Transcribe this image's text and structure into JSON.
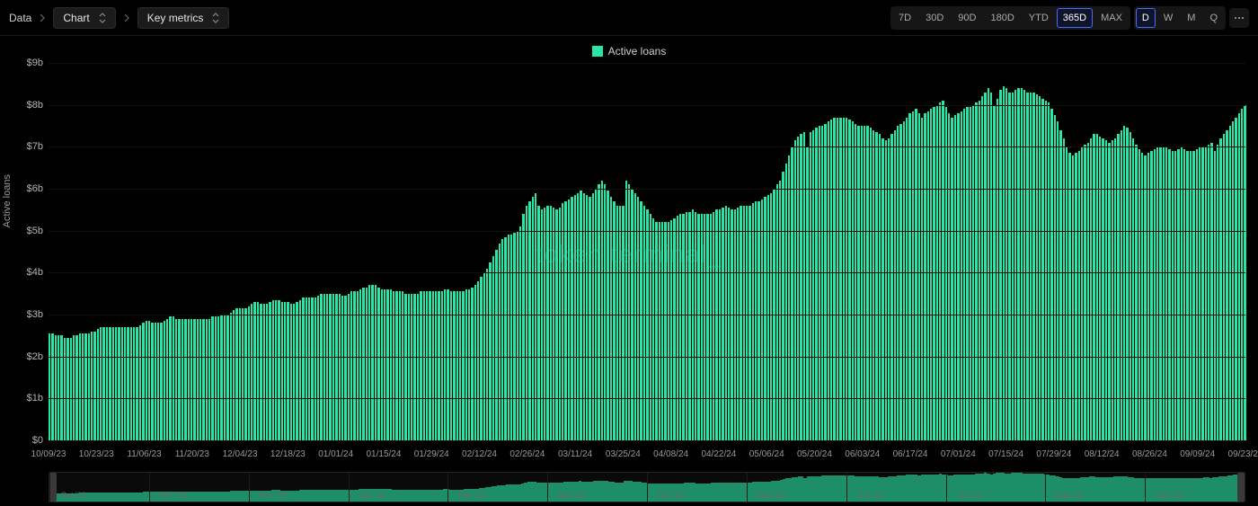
{
  "toolbar": {
    "root_label": "Data",
    "view_select": {
      "label": "Chart"
    },
    "metric_select": {
      "label": "Key metrics"
    },
    "ranges": [
      {
        "label": "7D",
        "selected": false
      },
      {
        "label": "30D",
        "selected": false
      },
      {
        "label": "90D",
        "selected": false
      },
      {
        "label": "180D",
        "selected": false
      },
      {
        "label": "YTD",
        "selected": false
      },
      {
        "label": "365D",
        "selected": true
      },
      {
        "label": "MAX",
        "selected": false
      }
    ],
    "intervals": [
      {
        "label": "D",
        "selected": true
      },
      {
        "label": "W",
        "selected": false
      },
      {
        "label": "M",
        "selected": false
      },
      {
        "label": "Q",
        "selected": false
      }
    ]
  },
  "chart": {
    "type": "bar",
    "legend_label": "Active loans",
    "y_axis_title": "Active loans",
    "watermark": "token terminal_",
    "bar_color": "#29e6a7",
    "background_color": "#000000",
    "grid_color": "#111111",
    "text_color": "#b5b5b5",
    "selected_range_border": "#4a6cff",
    "legend_fontsize": 12,
    "tick_fontsize": 11,
    "ylim": [
      0,
      9
    ],
    "y_unit_suffix": "b",
    "y_ticks": [
      {
        "value": 0,
        "label": "$0"
      },
      {
        "value": 1,
        "label": "$1b"
      },
      {
        "value": 2,
        "label": "$2b"
      },
      {
        "value": 3,
        "label": "$3b"
      },
      {
        "value": 4,
        "label": "$4b"
      },
      {
        "value": 5,
        "label": "$5b"
      },
      {
        "value": 6,
        "label": "$6b"
      },
      {
        "value": 7,
        "label": "$7b"
      },
      {
        "value": 8,
        "label": "$8b"
      },
      {
        "value": 9,
        "label": "$9b"
      }
    ],
    "x_ticks": [
      "10/09/23",
      "10/23/23",
      "11/06/23",
      "11/20/23",
      "12/04/23",
      "12/18/23",
      "01/01/24",
      "01/15/24",
      "01/29/24",
      "02/12/24",
      "02/26/24",
      "03/11/24",
      "03/25/24",
      "04/08/24",
      "04/22/24",
      "05/06/24",
      "05/20/24",
      "06/03/24",
      "06/17/24",
      "07/01/24",
      "07/15/24",
      "07/29/24",
      "08/12/24",
      "08/26/24",
      "09/09/24",
      "09/23/24"
    ],
    "values": [
      2.55,
      2.55,
      2.5,
      2.5,
      2.5,
      2.45,
      2.45,
      2.45,
      2.5,
      2.5,
      2.55,
      2.55,
      2.55,
      2.55,
      2.6,
      2.6,
      2.65,
      2.7,
      2.7,
      2.7,
      2.7,
      2.7,
      2.7,
      2.7,
      2.7,
      2.7,
      2.7,
      2.7,
      2.7,
      2.7,
      2.75,
      2.8,
      2.85,
      2.85,
      2.8,
      2.8,
      2.8,
      2.8,
      2.85,
      2.9,
      2.95,
      2.95,
      2.9,
      2.9,
      2.9,
      2.9,
      2.9,
      2.9,
      2.9,
      2.9,
      2.9,
      2.9,
      2.9,
      2.9,
      2.95,
      2.95,
      2.95,
      3.0,
      3.0,
      3.0,
      3.05,
      3.1,
      3.15,
      3.15,
      3.15,
      3.15,
      3.2,
      3.25,
      3.3,
      3.3,
      3.25,
      3.25,
      3.25,
      3.3,
      3.35,
      3.35,
      3.35,
      3.3,
      3.3,
      3.3,
      3.25,
      3.25,
      3.3,
      3.35,
      3.4,
      3.4,
      3.4,
      3.4,
      3.4,
      3.45,
      3.5,
      3.5,
      3.5,
      3.5,
      3.5,
      3.5,
      3.5,
      3.45,
      3.45,
      3.5,
      3.55,
      3.55,
      3.55,
      3.6,
      3.65,
      3.65,
      3.7,
      3.7,
      3.7,
      3.65,
      3.6,
      3.6,
      3.6,
      3.6,
      3.55,
      3.55,
      3.55,
      3.55,
      3.5,
      3.5,
      3.5,
      3.5,
      3.5,
      3.55,
      3.55,
      3.55,
      3.55,
      3.55,
      3.55,
      3.55,
      3.55,
      3.6,
      3.6,
      3.55,
      3.55,
      3.55,
      3.55,
      3.55,
      3.6,
      3.6,
      3.65,
      3.7,
      3.8,
      3.9,
      4.0,
      4.1,
      4.25,
      4.4,
      4.55,
      4.7,
      4.8,
      4.85,
      4.9,
      4.9,
      4.95,
      5.0,
      5.1,
      5.4,
      5.6,
      5.7,
      5.8,
      5.9,
      5.6,
      5.5,
      5.55,
      5.6,
      5.6,
      5.55,
      5.5,
      5.55,
      5.65,
      5.7,
      5.75,
      5.8,
      5.85,
      5.9,
      5.95,
      5.9,
      5.85,
      5.8,
      5.9,
      6.0,
      6.1,
      6.2,
      6.1,
      5.95,
      5.8,
      5.7,
      5.6,
      5.6,
      5.6,
      6.2,
      6.1,
      6.0,
      5.9,
      5.8,
      5.7,
      5.6,
      5.5,
      5.4,
      5.3,
      5.2,
      5.2,
      5.2,
      5.2,
      5.2,
      5.25,
      5.3,
      5.35,
      5.4,
      5.4,
      5.45,
      5.45,
      5.5,
      5.45,
      5.4,
      5.4,
      5.4,
      5.4,
      5.4,
      5.45,
      5.5,
      5.5,
      5.55,
      5.6,
      5.55,
      5.5,
      5.5,
      5.55,
      5.6,
      5.6,
      5.6,
      5.6,
      5.65,
      5.7,
      5.7,
      5.75,
      5.8,
      5.85,
      5.9,
      6.0,
      6.1,
      6.2,
      6.4,
      6.6,
      6.8,
      7.0,
      7.15,
      7.25,
      7.3,
      7.35,
      7.0,
      7.35,
      7.4,
      7.45,
      7.5,
      7.5,
      7.55,
      7.6,
      7.65,
      7.7,
      7.7,
      7.7,
      7.7,
      7.7,
      7.65,
      7.6,
      7.55,
      7.5,
      7.5,
      7.5,
      7.5,
      7.45,
      7.4,
      7.35,
      7.3,
      7.2,
      7.15,
      7.2,
      7.3,
      7.4,
      7.5,
      7.55,
      7.6,
      7.7,
      7.8,
      7.85,
      7.9,
      7.8,
      7.7,
      7.8,
      7.85,
      7.9,
      7.95,
      8.0,
      8.05,
      8.1,
      7.95,
      7.8,
      7.7,
      7.75,
      7.8,
      7.85,
      7.9,
      7.95,
      7.95,
      8.0,
      8.05,
      8.1,
      8.2,
      8.3,
      8.4,
      8.3,
      8.0,
      8.15,
      8.35,
      8.45,
      8.4,
      8.3,
      8.3,
      8.35,
      8.4,
      8.4,
      8.35,
      8.3,
      8.3,
      8.3,
      8.25,
      8.2,
      8.15,
      8.1,
      8.05,
      7.9,
      7.75,
      7.6,
      7.4,
      7.2,
      7.0,
      6.85,
      6.8,
      6.85,
      6.9,
      7.0,
      7.05,
      7.1,
      7.2,
      7.3,
      7.3,
      7.25,
      7.2,
      7.15,
      7.1,
      7.15,
      7.2,
      7.3,
      7.4,
      7.5,
      7.45,
      7.35,
      7.2,
      7.05,
      6.95,
      6.85,
      6.8,
      6.85,
      6.9,
      6.95,
      7.0,
      7.0,
      7.0,
      7.0,
      6.95,
      6.9,
      6.9,
      6.95,
      7.0,
      6.95,
      6.9,
      6.9,
      6.9,
      6.95,
      7.0,
      7.0,
      7.0,
      7.05,
      7.1,
      6.9,
      7.05,
      7.2,
      7.3,
      7.4,
      7.5,
      7.6,
      7.7,
      7.8,
      7.9,
      8.0
    ],
    "brush_ticks": [
      "Oct '23",
      "Nov '23",
      "Dec '23",
      "Jan '24",
      "Feb '24",
      "Mar '24",
      "Apr '24",
      "May '24",
      "Jun '24",
      "Jul '24",
      "Aug '24",
      "Sep '24"
    ]
  }
}
